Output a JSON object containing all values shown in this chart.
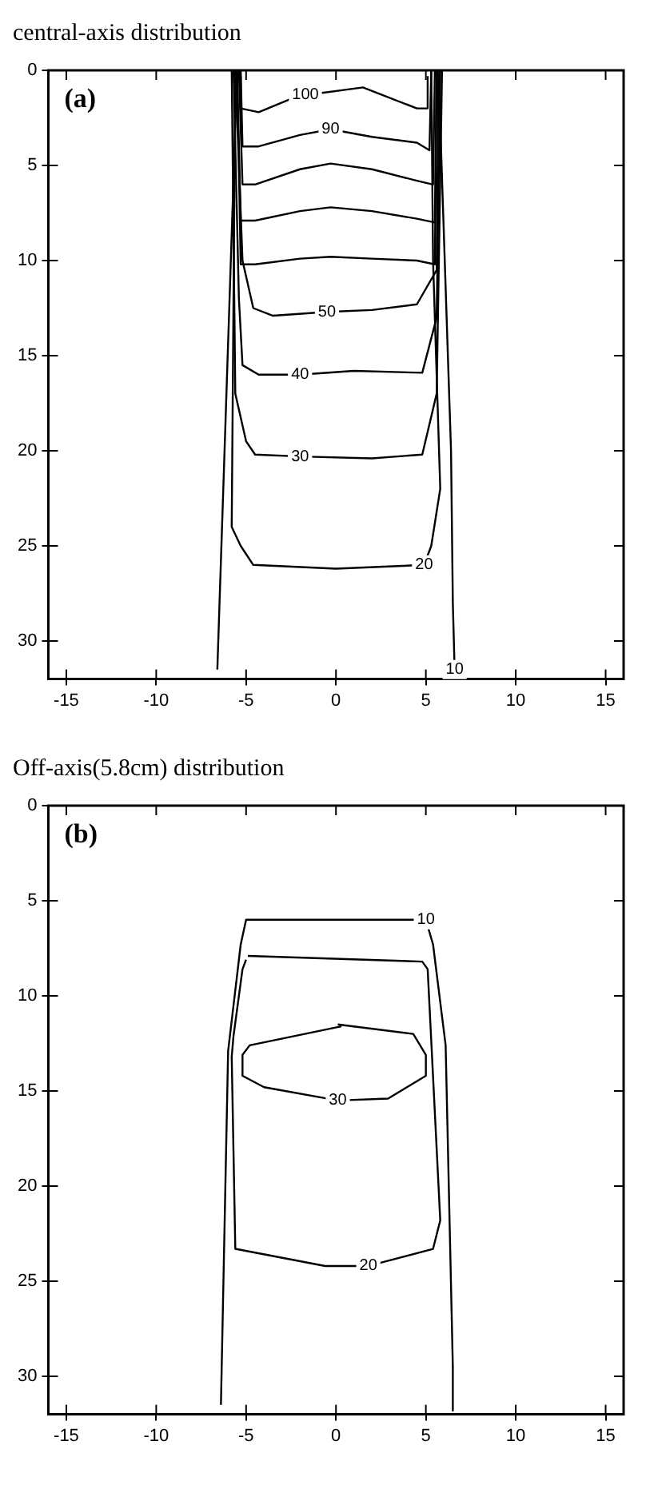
{
  "chart_data": [
    {
      "type": "line",
      "title": "central-axis distribution",
      "annotations": [
        "(a)"
      ],
      "xlim": [
        -16,
        16
      ],
      "ylim": [
        32,
        0
      ],
      "xticks": [
        -15,
        -10,
        -5,
        0,
        5,
        10,
        15
      ],
      "yticks": [
        0,
        5,
        10,
        15,
        20,
        25,
        30
      ],
      "grid": false,
      "legend": false,
      "marker": "none",
      "line_style": "solid",
      "series": [
        {
          "name": "100",
          "color": "#000000",
          "x": [
            -5.3,
            -5.3,
            -4.3,
            -2.5,
            -1.7,
            1.5,
            4.5,
            5.1,
            5.1
          ],
          "values": [
            0.3,
            2.0,
            2.2,
            1.5,
            1.3,
            0.9,
            2.0,
            2.0,
            0.3
          ]
        },
        {
          "name": "90",
          "color": "#000000",
          "x": [
            -5.3,
            -5.2,
            -4.3,
            -2,
            -0.3,
            2,
            4.5,
            5.2,
            5.3
          ],
          "values": [
            0,
            4.0,
            4.0,
            3.4,
            3.1,
            3.5,
            3.8,
            4.2,
            0
          ]
        },
        {
          "x": [
            -5.4,
            -5.2,
            -4.5,
            -2,
            -0.3,
            2,
            4.5,
            5.4,
            5.5
          ],
          "color": "#000000",
          "values": [
            0,
            6.0,
            6.0,
            5.2,
            4.9,
            5.2,
            5.8,
            6.0,
            0
          ]
        },
        {
          "x": [
            -5.5,
            -5.3,
            -4.5,
            -2,
            -0.3,
            2,
            4.5,
            5.5,
            5.6
          ],
          "color": "#000000",
          "values": [
            0,
            7.9,
            7.9,
            7.4,
            7.2,
            7.4,
            7.8,
            8.0,
            0
          ]
        },
        {
          "x": [
            -5.5,
            -5.3,
            -4.5,
            -2,
            -0.3,
            2,
            4.5,
            5.5,
            5.6
          ],
          "color": "#000000",
          "values": [
            0,
            10.2,
            10.2,
            9.9,
            9.8,
            9.9,
            10.0,
            10.2,
            0
          ]
        },
        {
          "name": "50",
          "color": "#000000",
          "x": [
            -5.6,
            -5.2,
            -4.6,
            -3.5,
            -0.5,
            2,
            4.5,
            5.6,
            5.7
          ],
          "values": [
            0,
            10,
            12.5,
            12.9,
            12.7,
            12.6,
            12.3,
            10.5,
            0
          ]
        },
        {
          "name": "40",
          "color": "#000000",
          "x": [
            -5.7,
            -5.4,
            -5.2,
            -4.3,
            -2,
            1,
            4.8,
            5.6,
            5.8
          ],
          "values": [
            0,
            12,
            15.5,
            16.0,
            16.0,
            15.8,
            15.9,
            13,
            0
          ]
        },
        {
          "name": "30",
          "color": "#000000",
          "x": [
            -5.8,
            -5.6,
            -5.0,
            -4.5,
            -2,
            2,
            4.8,
            5.6,
            5.9
          ],
          "values": [
            0,
            17,
            19.5,
            20.2,
            20.3,
            20.4,
            20.2,
            17,
            0
          ]
        },
        {
          "name": "20",
          "color": "#000000",
          "x": [
            -5.6,
            -5.8,
            -5.3,
            -4.6,
            0,
            4.9,
            5.3,
            5.8,
            5.4,
            5.3
          ],
          "values": [
            0,
            24,
            25,
            26,
            26.2,
            26,
            25,
            22,
            10,
            0
          ]
        },
        {
          "name": "10",
          "color": "#000000",
          "x": [
            -5.5,
            -6.6,
            null,
            6.6,
            6.5,
            6.4,
            5.7
          ],
          "values": [
            0,
            31.5,
            null,
            31.5,
            28,
            20,
            0
          ]
        }
      ]
    },
    {
      "type": "line",
      "title": "Off-axis(5.8cm) distribution",
      "annotations": [
        "(b)"
      ],
      "xlim": [
        -16,
        16
      ],
      "ylim": [
        32,
        0
      ],
      "xticks": [
        -15,
        -10,
        -5,
        0,
        5,
        10,
        15
      ],
      "yticks": [
        0,
        5,
        10,
        15,
        20,
        25,
        30
      ],
      "grid": false,
      "legend": false,
      "marker": "none",
      "line_style": "solid",
      "series": [
        {
          "name": "10",
          "color": "#000000",
          "x": [
            -6.4,
            -6.0,
            -5.3,
            -5.0,
            5.0,
            5.4,
            6.1,
            6.5,
            6.5
          ],
          "values": [
            31.5,
            12.9,
            7.3,
            6.0,
            6.0,
            7.3,
            12.6,
            29.5,
            31.8
          ]
        },
        {
          "name": "20",
          "color": "#000000",
          "x": [
            -5.0,
            -5.2,
            -5.7,
            -5.8,
            -5.6,
            -0.6,
            1.8,
            5.4,
            5.8,
            5.1,
            4.8,
            -4.9
          ],
          "values": [
            8.1,
            8.6,
            12.1,
            13.2,
            23.3,
            24.2,
            24.2,
            23.3,
            21.8,
            8.6,
            8.2,
            7.9
          ]
        },
        {
          "name": "30",
          "color": "#000000",
          "x": [
            0.3,
            -4.8,
            -5.2,
            -5.2,
            -4.0,
            0.1,
            2.9,
            5.0,
            5.0,
            4.3,
            0.1
          ],
          "values": [
            11.6,
            12.6,
            13.1,
            14.2,
            14.8,
            15.5,
            15.4,
            14.2,
            13.1,
            12.0,
            11.5
          ]
        }
      ]
    }
  ]
}
